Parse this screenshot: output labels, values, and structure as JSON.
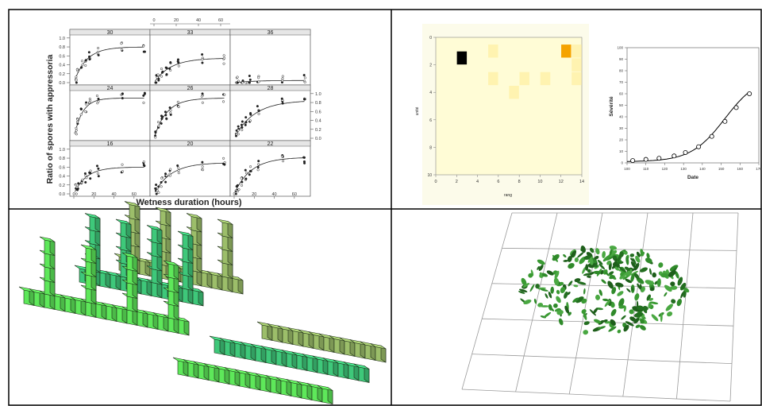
{
  "colors": {
    "grid_divider": "#000000",
    "heat_bg": "#fffcd6",
    "heat_light": "#fff3b0",
    "heat_orange": "#f5a300",
    "heat_black": "#000000",
    "block_light_green": "#5ee85a",
    "block_mid_green": "#3ec87a",
    "block_olive": "#9cbe6a",
    "leaf_green": "#2f8a2a"
  },
  "panel1": {
    "ylabel": "Ratio of spores with appressoria",
    "xlabel": "Wetness duration (hours)",
    "top_axis_ticks": [
      "0",
      "20",
      "40",
      "60"
    ],
    "left_y_ticks": [
      "0.0",
      "0.2",
      "0.4",
      "0.6",
      "0.8",
      "1.0"
    ],
    "bottom_x_ticks": [
      "0",
      "20",
      "40",
      "60"
    ],
    "subplots": [
      {
        "title": "30",
        "asym": 0.8,
        "rate": 0.08
      },
      {
        "title": "33",
        "asym": 0.55,
        "rate": 0.06
      },
      {
        "title": "36",
        "asym": 0.05,
        "rate": 0.05
      },
      {
        "title": "24",
        "asym": 0.9,
        "rate": 0.12
      },
      {
        "title": "26",
        "asym": 0.9,
        "rate": 0.08
      },
      {
        "title": "28",
        "asym": 0.85,
        "rate": 0.05
      },
      {
        "title": "16",
        "asym": 0.6,
        "rate": 0.08
      },
      {
        "title": "20",
        "asym": 0.7,
        "rate": 0.06
      },
      {
        "title": "22",
        "asym": 0.82,
        "rate": 0.06
      }
    ]
  },
  "panel2": {
    "heatmap": {
      "xlabel": "rang",
      "ylabel": "unité",
      "x_ticks": [
        "0",
        "2",
        "4",
        "6",
        "8",
        "10",
        "12",
        "14"
      ],
      "y_ticks": [
        "10",
        "8",
        "6",
        "4",
        "2",
        "0"
      ]
    },
    "curve": {
      "ylabel": "Sévérité",
      "xlabel": "Date",
      "y_ticks": [
        "0",
        "10",
        "20",
        "30",
        "40",
        "50",
        "60",
        "70",
        "80",
        "90",
        "100"
      ],
      "x_ticks": [
        "100",
        "110",
        "120",
        "130",
        "140",
        "150",
        "160",
        "170"
      ]
    }
  },
  "chart_data": [
    {
      "type": "heatmap",
      "title": "",
      "xlabel": "rang",
      "ylabel": "unité",
      "xlim": [
        0,
        14
      ],
      "ylim": [
        10,
        0
      ],
      "cells": [
        {
          "x": 2.5,
          "y": 1.5,
          "level": "black"
        },
        {
          "x": 5.5,
          "y": 1,
          "level": "light"
        },
        {
          "x": 12.5,
          "y": 1,
          "level": "orange"
        },
        {
          "x": 13.5,
          "y": 1,
          "level": "light"
        },
        {
          "x": 13.5,
          "y": 2,
          "level": "light"
        },
        {
          "x": 5.5,
          "y": 3,
          "level": "light"
        },
        {
          "x": 8.5,
          "y": 3,
          "level": "light"
        },
        {
          "x": 10.5,
          "y": 3,
          "level": "light"
        },
        {
          "x": 13.5,
          "y": 3,
          "level": "light"
        },
        {
          "x": 7.5,
          "y": 4,
          "level": "light"
        }
      ]
    },
    {
      "type": "scatter",
      "title": "",
      "xlabel": "Date",
      "ylabel": "Sévérité",
      "xlim": [
        100,
        170
      ],
      "ylim": [
        0,
        100
      ],
      "x": [
        103,
        110,
        117,
        125,
        131,
        138,
        145,
        152,
        158,
        165
      ],
      "y": [
        2,
        3,
        4,
        6,
        9,
        14,
        23,
        36,
        48,
        60
      ]
    }
  ]
}
